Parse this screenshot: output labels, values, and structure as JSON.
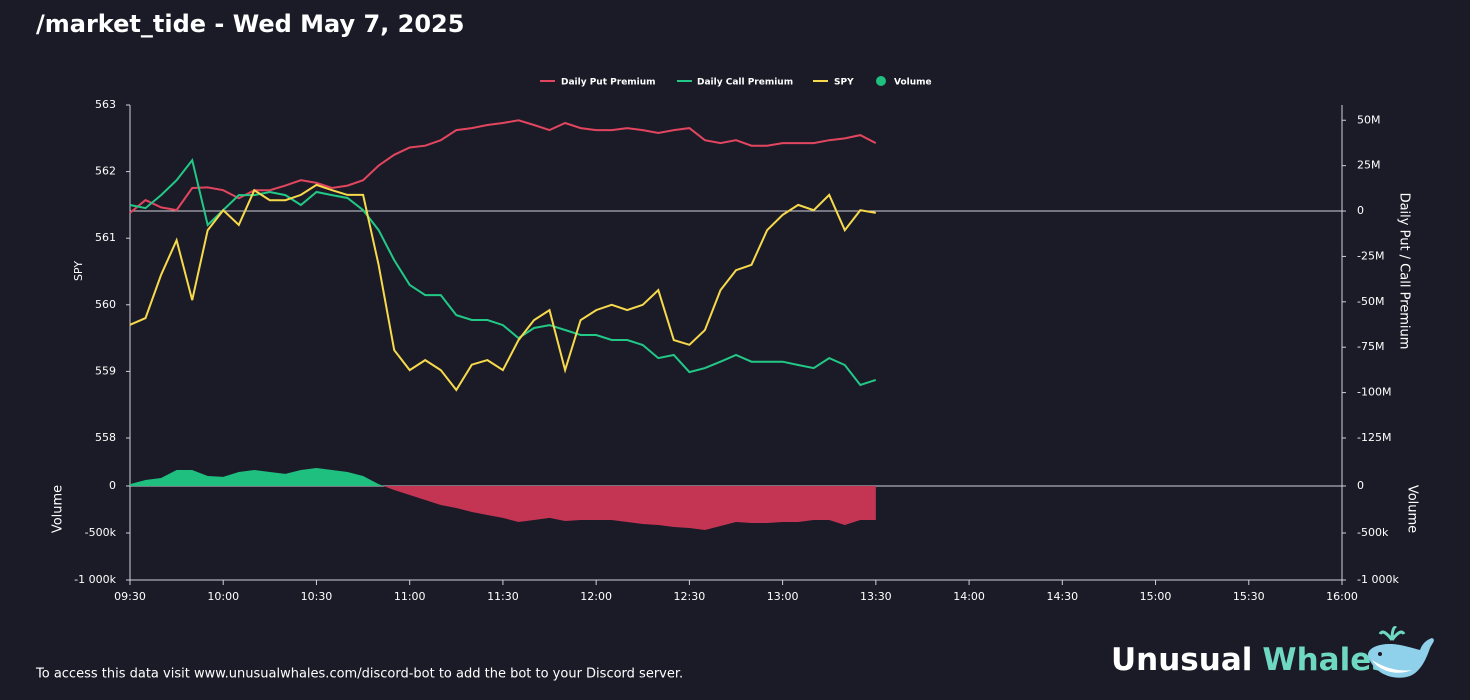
{
  "chart_data": [
    {
      "type": "line",
      "title": "/market_tide - Wed May 7, 2025",
      "ylabel": "SPY",
      "y2label": "Daily Put / Call Premium",
      "xlim": [
        570,
        960
      ],
      "ylim": [
        558,
        563
      ],
      "yticks": [
        558,
        559,
        560,
        561,
        562,
        563
      ],
      "y2lim": [
        -125000000,
        58400000
      ],
      "y2ticks": [
        {
          "value": -125000000,
          "label": "-125M"
        },
        {
          "value": -100000000,
          "label": "-100M"
        },
        {
          "value": -75000000,
          "label": "-75M"
        },
        {
          "value": -50000000,
          "label": "-50M"
        },
        {
          "value": -25000000,
          "label": "-25M"
        },
        0,
        {
          "value": 25000000,
          "label": "25M"
        },
        {
          "value": 50000000,
          "label": "50M"
        }
      ],
      "zero_line": true,
      "x": [
        570,
        575,
        580,
        585,
        590,
        595,
        600,
        605,
        610,
        615,
        620,
        625,
        630,
        635,
        640,
        645,
        650,
        655,
        660,
        665,
        670,
        675,
        680,
        685,
        690,
        695,
        700,
        705,
        710,
        715,
        720,
        725,
        730,
        735,
        740,
        745,
        750,
        755,
        760,
        765,
        770,
        775,
        780,
        785,
        790,
        795,
        800,
        805,
        810
      ],
      "series": [
        {
          "name": "Daily Put Premium",
          "color": "#e2465f",
          "axis": "y2",
          "values": [
            -1000000,
            6000000,
            2000000,
            500000,
            12700000,
            13000000,
            11500000,
            7000000,
            11500000,
            11500000,
            14000000,
            17000000,
            15500000,
            12700000,
            14000000,
            17000000,
            25000000,
            31000000,
            35000000,
            36000000,
            39000000,
            44600000,
            45700000,
            47400000,
            48500000,
            50000000,
            47400000,
            44600000,
            48500000,
            45700000,
            44600000,
            44600000,
            45700000,
            44600000,
            43000000,
            44600000,
            45700000,
            39000000,
            37400000,
            39000000,
            36000000,
            36000000,
            37400000,
            37400000,
            37400000,
            39000000,
            40000000,
            41800000,
            37400000
          ]
        },
        {
          "name": "Daily Call Premium",
          "color": "#22c986",
          "axis": "y2",
          "values": [
            3300000,
            1600000,
            8800000,
            17000000,
            28000000,
            -7700000,
            500000,
            8800000,
            8800000,
            10500000,
            8800000,
            3300000,
            10500000,
            8800000,
            7200000,
            500000,
            -10500000,
            -27000000,
            -40700000,
            -46300000,
            -46300000,
            -57300000,
            -60000000,
            -60000000,
            -62800000,
            -70000000,
            -64400000,
            -62800000,
            -65500000,
            -68300000,
            -68300000,
            -71000000,
            -71000000,
            -73800000,
            -81000000,
            -79300000,
            -88700000,
            -86500000,
            -83000000,
            -79300000,
            -83000000,
            -83000000,
            -83000000,
            -84800000,
            -86500000,
            -81000000,
            -84800000,
            -95800000,
            -93000000
          ]
        },
        {
          "name": "SPY",
          "color": "#f7d94c",
          "axis": "y",
          "values": [
            559.7,
            559.8,
            560.45,
            560.97,
            560.07,
            561.12,
            561.42,
            561.2,
            561.72,
            561.57,
            561.57,
            561.65,
            561.8,
            561.72,
            561.65,
            561.65,
            560.6,
            559.32,
            559.02,
            559.17,
            559.02,
            558.72,
            559.1,
            559.17,
            559.02,
            559.47,
            559.77,
            559.92,
            559.02,
            559.77,
            559.92,
            560.0,
            559.92,
            560.0,
            560.22,
            559.47,
            559.4,
            559.62,
            560.22,
            560.52,
            560.6,
            561.12,
            561.35,
            561.5,
            561.42,
            561.65,
            561.12,
            561.42,
            561.38
          ]
        }
      ]
    },
    {
      "type": "area",
      "ylabel": "Volume",
      "mirror_ticks": true,
      "zero_line": true,
      "xlim": [
        570,
        960
      ],
      "ylim": [
        -1000000,
        510000
      ],
      "yticks": [
        {
          "value": -1000000,
          "label": "-1 000k"
        },
        {
          "value": -500000,
          "label": "-500k"
        },
        0
      ],
      "xticks": [
        {
          "value": 570,
          "label": "09:30"
        },
        {
          "value": 600,
          "label": "10:00"
        },
        {
          "value": 630,
          "label": "10:30"
        },
        {
          "value": 660,
          "label": "11:00"
        },
        {
          "value": 690,
          "label": "11:30"
        },
        {
          "value": 720,
          "label": "12:00"
        },
        {
          "value": 750,
          "label": "12:30"
        },
        {
          "value": 780,
          "label": "13:00"
        },
        {
          "value": 810,
          "label": "13:30"
        },
        {
          "value": 840,
          "label": "14:00"
        },
        {
          "value": 870,
          "label": "14:30"
        },
        {
          "value": 900,
          "label": "15:00"
        },
        {
          "value": 930,
          "label": "15:30"
        },
        {
          "value": 960,
          "label": "16:00"
        }
      ],
      "x": [
        570,
        575,
        580,
        585,
        590,
        595,
        600,
        605,
        610,
        615,
        620,
        625,
        630,
        635,
        640,
        645,
        650,
        655,
        660,
        665,
        670,
        675,
        680,
        685,
        690,
        695,
        700,
        705,
        710,
        715,
        720,
        725,
        730,
        735,
        740,
        745,
        750,
        755,
        760,
        765,
        770,
        775,
        780,
        785,
        790,
        795,
        800,
        805,
        810
      ],
      "series": [
        {
          "name": "Volume",
          "color": "#1fbf80",
          "negative_color": "#c43554",
          "values": [
            20000,
            64000,
            85000,
            170000,
            170000,
            106000,
            96000,
            149000,
            170000,
            149000,
            128000,
            170000,
            191000,
            170000,
            149000,
            106000,
            20000,
            -43000,
            -96000,
            -149000,
            -202000,
            -234000,
            -277000,
            -309000,
            -340000,
            -383000,
            -362000,
            -340000,
            -372000,
            -362000,
            -362000,
            -362000,
            -383000,
            -404000,
            -415000,
            -436000,
            -447000,
            -468000,
            -426000,
            -383000,
            -394000,
            -394000,
            -383000,
            -383000,
            -362000,
            -362000,
            -415000,
            -362000,
            -362000
          ]
        }
      ]
    }
  ],
  "footer": {
    "note": "To access this data visit www.unusualwhales.com/discord-bot to add the bot to your Discord server.",
    "brand": [
      "Unusual",
      "Whales"
    ]
  }
}
